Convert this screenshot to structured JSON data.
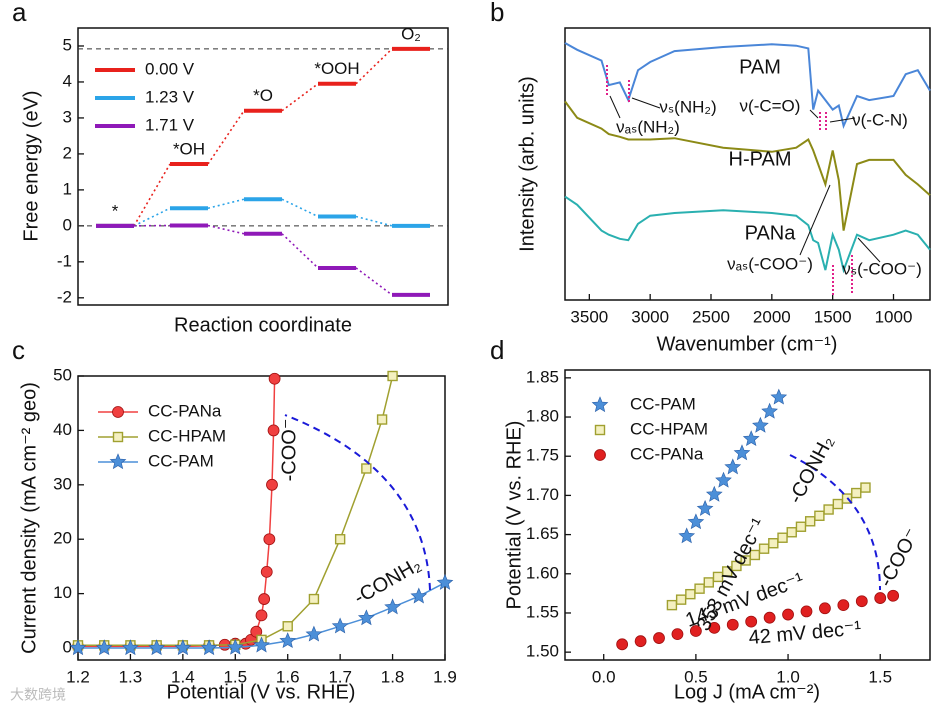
{
  "watermark": "大数跨境",
  "chart_data": [
    {
      "type": "step",
      "panel_label": "a",
      "xlabel": "Reaction coordinate",
      "ylabel": "Free energy (eV)",
      "categories": [
        "*",
        "*OH",
        "*O",
        "*OOH",
        "O₂"
      ],
      "series": [
        {
          "name": "0.00 V",
          "color": "#e8211c",
          "values": [
            0,
            1.72,
            3.2,
            3.95,
            4.92
          ]
        },
        {
          "name": "1.23 V",
          "color": "#2ba4e8",
          "values": [
            0,
            0.49,
            0.74,
            0.26,
            0
          ]
        },
        {
          "name": "1.71 V",
          "color": "#8f19b8",
          "values": [
            0,
            0.01,
            -0.22,
            -1.17,
            -1.92
          ]
        }
      ],
      "reference_lines": [
        4.92,
        0
      ],
      "ylim": [
        -2.2,
        5.5
      ],
      "yticks": [
        -2,
        -1,
        0,
        1,
        2,
        3,
        4,
        5
      ],
      "legend": "upper-left"
    },
    {
      "type": "line",
      "panel_label": "b",
      "xlabel": "Wavenumber (cm⁻¹)",
      "ylabel": "Intensity (arb. units)",
      "x": [
        3700,
        3600,
        3400,
        3340,
        3250,
        3180,
        3100,
        3000,
        2800,
        2400,
        2000,
        1800,
        1700,
        1660,
        1620,
        1560,
        1500,
        1450,
        1410,
        1300,
        1200,
        1000,
        900,
        800,
        700
      ],
      "series": [
        {
          "name": "PAM",
          "color": "#4a86d8",
          "values": [
            94.5,
            92,
            88,
            79,
            80,
            73.5,
            84.5,
            87.5,
            91.5,
            93,
            94,
            93.5,
            92.5,
            70,
            77,
            73.5,
            70,
            71.5,
            64,
            75,
            73.5,
            75,
            83,
            84.5,
            77
          ]
        },
        {
          "name": "H-PAM",
          "color": "#8c8a16",
          "values": [
            73,
            67,
            63,
            61,
            60,
            59,
            59,
            59,
            59.5,
            56,
            54.5,
            56,
            59,
            55,
            50,
            42.5,
            55,
            44,
            25.5,
            50,
            51.5,
            51.5,
            46,
            42.5,
            38.5
          ]
        },
        {
          "name": "PANa",
          "color": "#2ab0b0",
          "values": [
            38,
            35,
            25.5,
            24,
            22.5,
            22,
            28,
            31,
            32,
            33,
            32,
            31,
            27.5,
            22,
            21,
            11,
            24,
            18.5,
            11,
            24,
            22,
            24,
            25.5,
            24,
            18.5
          ]
        }
      ],
      "annotations": [
        "νₐₛ(NH₂)",
        "νₛ(NH₂)",
        "ν(-C=O)",
        "ν(-C-N)",
        "νₐₛ(-COO⁻)",
        "νₛ(-COO⁻)"
      ],
      "xlim": [
        3700,
        700
      ],
      "xticks": [
        3500,
        3000,
        2500,
        2000,
        1500,
        1000
      ],
      "ylim": [
        0,
        100
      ]
    },
    {
      "type": "line",
      "panel_label": "c",
      "xlabel": "Potential (V vs. RHE)",
      "ylabel": "Current density (mA cm⁻² geo)",
      "series": [
        {
          "name": "CC-PANa",
          "color": "#f04040",
          "marker": "circle",
          "x": [
            1.2,
            1.25,
            1.3,
            1.35,
            1.4,
            1.45,
            1.48,
            1.5,
            1.52,
            1.53,
            1.54,
            1.55,
            1.555,
            1.56,
            1.565,
            1.57,
            1.573,
            1.575
          ],
          "values": [
            0.3,
            0.3,
            0.3,
            0.3,
            0.3,
            0.4,
            0.6,
            0.8,
            0.8,
            1.5,
            3,
            6,
            9,
            14,
            20,
            30,
            40,
            49.5
          ]
        },
        {
          "name": "CC-HPAM",
          "color": "#a0a030",
          "marker": "square",
          "x": [
            1.2,
            1.25,
            1.3,
            1.35,
            1.4,
            1.45,
            1.5,
            1.55,
            1.6,
            1.65,
            1.7,
            1.75,
            1.78,
            1.8
          ],
          "values": [
            0.5,
            0.5,
            0.5,
            0.5,
            0.5,
            0.5,
            0.6,
            1.5,
            4,
            9,
            20,
            33,
            42,
            50
          ]
        },
        {
          "name": "CC-PAM",
          "color": "#4c8fd8",
          "marker": "star",
          "x": [
            1.2,
            1.25,
            1.3,
            1.35,
            1.4,
            1.45,
            1.5,
            1.55,
            1.6,
            1.65,
            1.7,
            1.75,
            1.8,
            1.85,
            1.9
          ],
          "values": [
            0,
            0,
            0,
            0,
            0,
            0,
            0.1,
            0.5,
            1.3,
            2.5,
            4,
            5.5,
            7.5,
            9.5,
            12
          ]
        }
      ],
      "annotations": [
        "-COO⁻",
        "-CONH₂"
      ],
      "xlim": [
        1.2,
        1.9
      ],
      "xticks": [
        1.2,
        1.3,
        1.4,
        1.5,
        1.6,
        1.7,
        1.8,
        1.9
      ],
      "ylim": [
        -2.2,
        50
      ],
      "yticks": [
        0,
        10,
        20,
        30,
        40,
        50
      ],
      "legend": "upper-left"
    },
    {
      "type": "scatter",
      "panel_label": "d",
      "xlabel": "Log J (mA cm⁻²)",
      "ylabel": "Potential (V vs. RHE)",
      "series": [
        {
          "name": "CC-PAM",
          "color": "#4c8fd8",
          "marker": "star",
          "x": [
            0.45,
            0.5,
            0.55,
            0.6,
            0.65,
            0.7,
            0.75,
            0.8,
            0.85,
            0.9,
            0.95
          ],
          "values": [
            1.648,
            1.666,
            1.683,
            1.701,
            1.719,
            1.736,
            1.754,
            1.772,
            1.789,
            1.807,
            1.825
          ]
        },
        {
          "name": "CC-HPAM",
          "color": "#a0a030",
          "marker": "square",
          "x": [
            0.37,
            0.42,
            0.47,
            0.52,
            0.57,
            0.62,
            0.67,
            0.72,
            0.77,
            0.82,
            0.87,
            0.92,
            0.97,
            1.02,
            1.07,
            1.12,
            1.17,
            1.22,
            1.27,
            1.32,
            1.37,
            1.42
          ],
          "values": [
            1.56,
            1.567,
            1.574,
            1.581,
            1.589,
            1.596,
            1.603,
            1.61,
            1.617,
            1.624,
            1.632,
            1.639,
            1.646,
            1.653,
            1.66,
            1.667,
            1.674,
            1.682,
            1.689,
            1.696,
            1.703,
            1.71
          ]
        },
        {
          "name": "CC-PANa",
          "color": "#e02020",
          "marker": "circle",
          "x": [
            0.1,
            0.2,
            0.3,
            0.4,
            0.5,
            0.6,
            0.7,
            0.8,
            0.9,
            1,
            1.1,
            1.2,
            1.3,
            1.4,
            1.5,
            1.57
          ],
          "values": [
            1.51,
            1.514,
            1.518,
            1.523,
            1.527,
            1.531,
            1.535,
            1.539,
            1.544,
            1.548,
            1.552,
            1.556,
            1.56,
            1.565,
            1.569,
            1.572
          ]
        }
      ],
      "annotations": [
        "353 mV dec⁻¹",
        "143 mV dec⁻¹",
        "42 mV dec⁻¹",
        "-CONH₂",
        "-COO⁻"
      ],
      "xlim": [
        -0.21,
        1.77
      ],
      "xticks": [
        {
          "value": 0,
          "label": "0.0"
        },
        0.5,
        {
          "value": 1,
          "label": "1.0"
        },
        1.5
      ],
      "ylim": [
        1.49,
        1.86
      ],
      "yticks": [
        {
          "value": 1.5,
          "label": "1.50"
        },
        1.55,
        {
          "value": 1.6,
          "label": "1.60"
        },
        1.65,
        {
          "value": 1.7,
          "label": "1.70"
        },
        1.75,
        {
          "value": 1.8,
          "label": "1.80"
        },
        1.85
      ],
      "legend": "upper-left"
    }
  ]
}
